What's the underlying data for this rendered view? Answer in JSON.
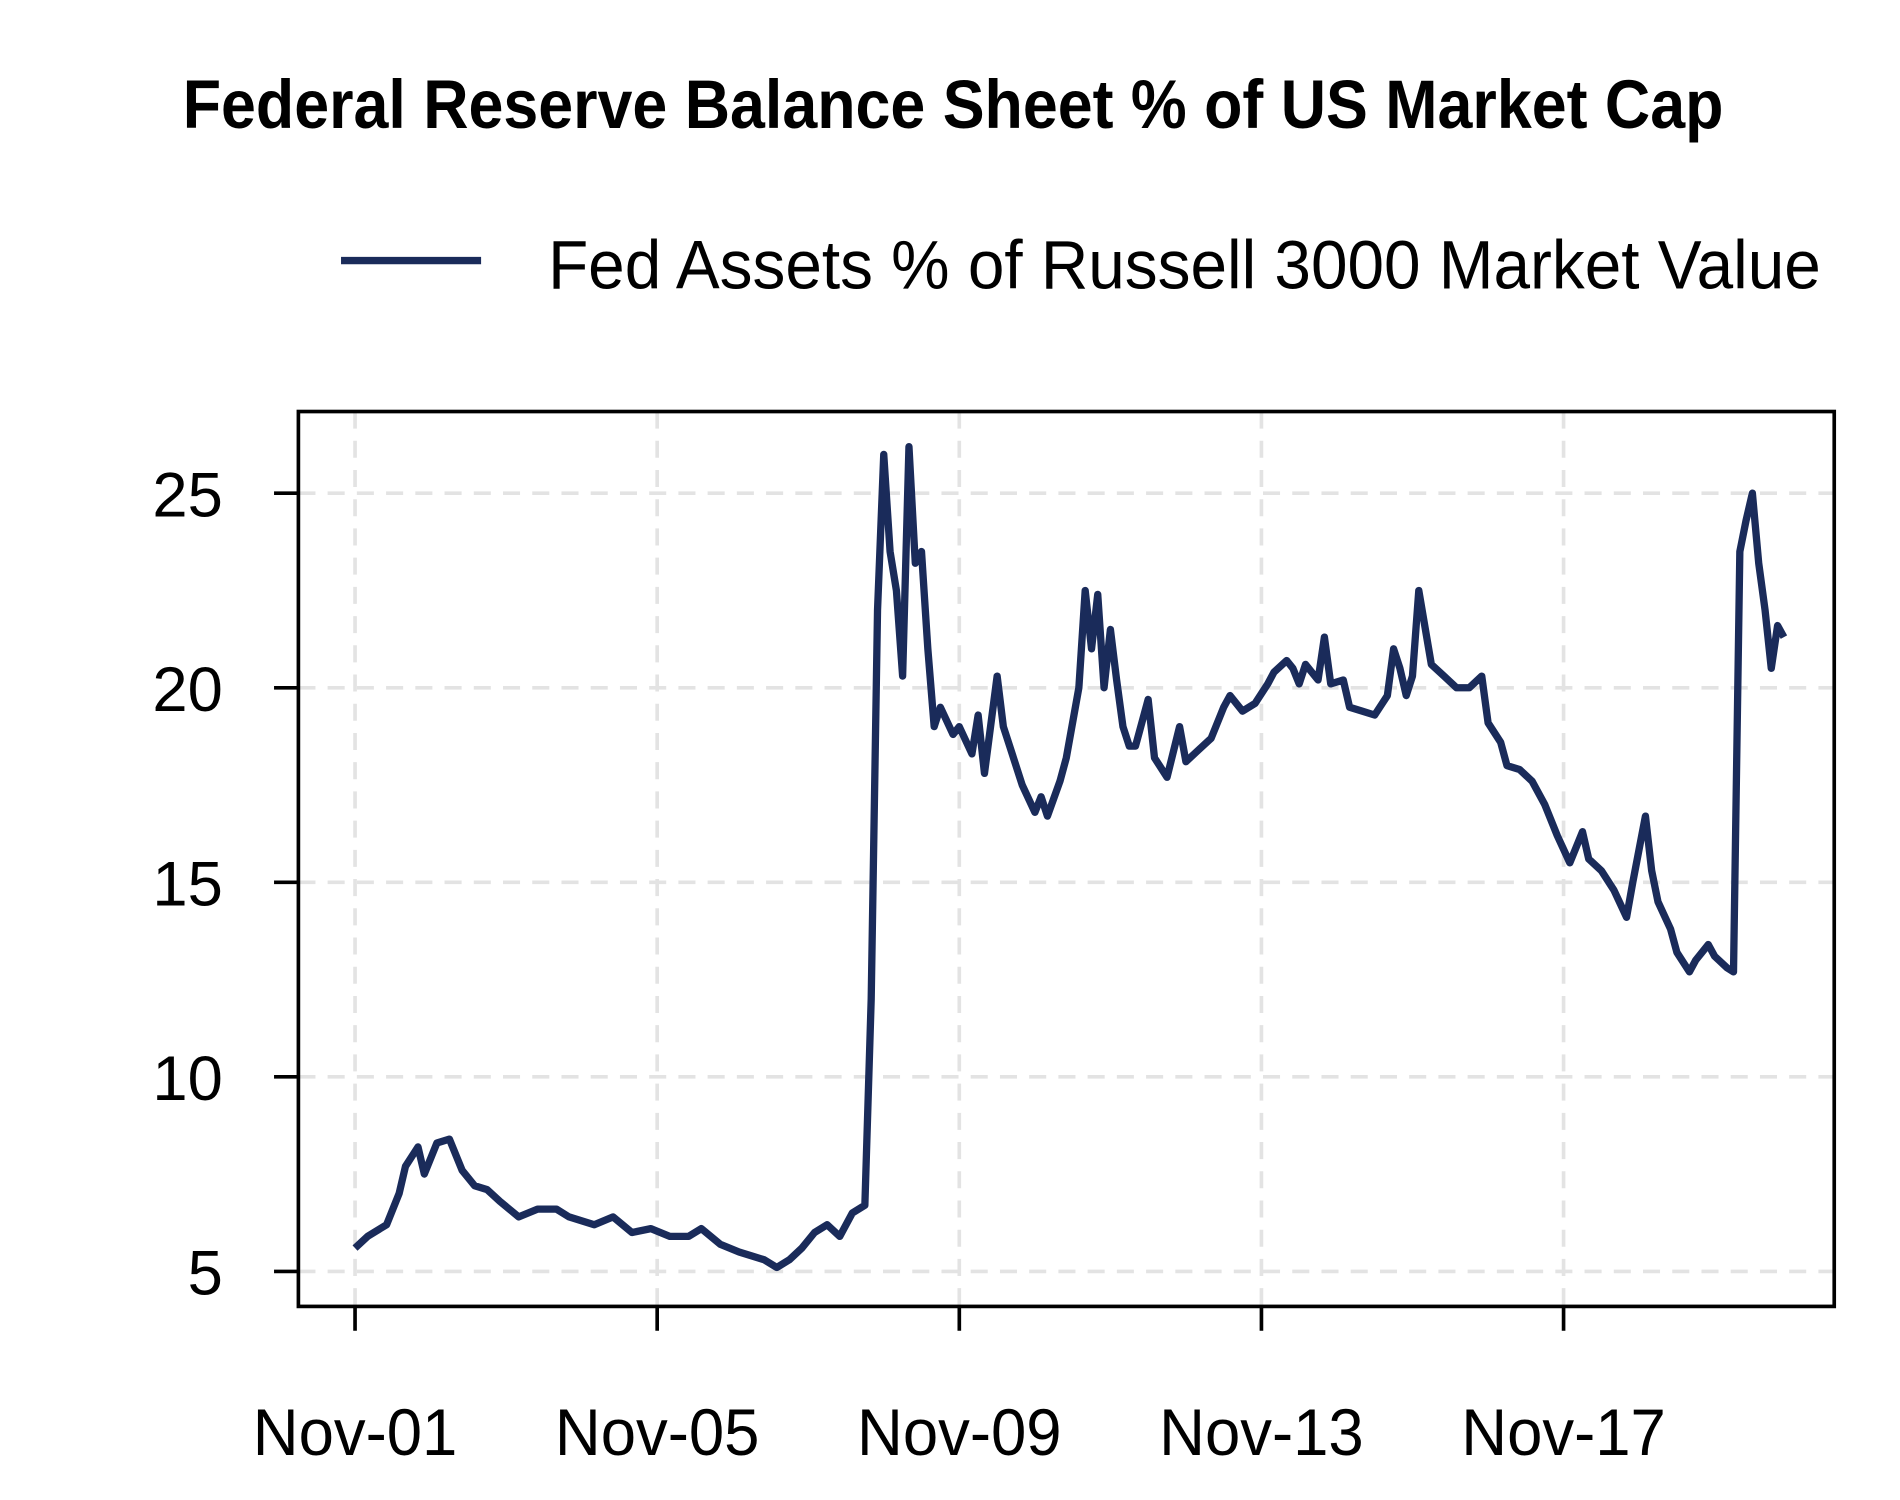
{
  "chart_data": {
    "type": "line",
    "title": "Federal Reserve Balance Sheet % of US Market Cap",
    "xlabel": "",
    "ylabel": "",
    "ylim": [
      4.1,
      27.1
    ],
    "xlim": [
      "2001-02",
      "2021-06"
    ],
    "grid": true,
    "legend_position": "top",
    "colors": {
      "line": "#1a2b5a",
      "grid": "#e3e3e3"
    },
    "x_ticks": [
      {
        "date": "2001-11",
        "label": "Nov-01"
      },
      {
        "date": "2005-11",
        "label": "Nov-05"
      },
      {
        "date": "2009-11",
        "label": "Nov-09"
      },
      {
        "date": "2013-11",
        "label": "Nov-13"
      },
      {
        "date": "2017-11",
        "label": "Nov-17"
      }
    ],
    "y_ticks": [
      {
        "value": 5,
        "label": "5"
      },
      {
        "value": 10,
        "label": "10"
      },
      {
        "value": 15,
        "label": "15"
      },
      {
        "value": 20,
        "label": "20"
      },
      {
        "value": 25,
        "label": "25"
      }
    ],
    "series": [
      {
        "name": "Fed Assets % of Russell 3000 Market Value",
        "x": [
          "2001-11",
          "2002-01",
          "2002-02",
          "2002-04",
          "2002-06",
          "2002-07",
          "2002-09",
          "2002-10",
          "2002-12",
          "2003-02",
          "2003-04",
          "2003-06",
          "2003-08",
          "2003-10",
          "2004-01",
          "2004-04",
          "2004-07",
          "2004-09",
          "2005-01",
          "2005-04",
          "2005-07",
          "2005-10",
          "2006-01",
          "2006-04",
          "2006-06",
          "2006-09",
          "2006-12",
          "2007-02",
          "2007-04",
          "2007-06",
          "2007-08",
          "2007-10",
          "2007-12",
          "2008-02",
          "2008-04",
          "2008-06",
          "2008-08",
          "2008-09",
          "2008-10",
          "2008-11",
          "2008-12",
          "2009-01",
          "2009-02",
          "2009-03",
          "2009-04",
          "2009-05",
          "2009-06",
          "2009-07",
          "2009-08",
          "2009-10",
          "2009-11",
          "2010-01",
          "2010-02",
          "2010-03",
          "2010-05",
          "2010-06",
          "2010-07",
          "2010-09",
          "2010-11",
          "2010-12",
          "2011-01",
          "2011-03",
          "2011-04",
          "2011-06",
          "2011-07",
          "2011-08",
          "2011-09",
          "2011-10",
          "2011-11",
          "2011-12",
          "2012-01",
          "2012-02",
          "2012-03",
          "2012-05",
          "2012-06",
          "2012-08",
          "2012-10",
          "2012-11",
          "2013-01",
          "2013-03",
          "2013-05",
          "2013-06",
          "2013-08",
          "2013-10",
          "2013-12",
          "2014-01",
          "2014-03",
          "2014-04",
          "2014-05",
          "2014-06",
          "2014-08",
          "2014-09",
          "2014-10",
          "2014-12",
          "2015-01",
          "2015-03",
          "2015-05",
          "2015-07",
          "2015-08",
          "2015-09",
          "2015-10",
          "2015-11",
          "2015-12",
          "2016-02",
          "2016-04",
          "2016-06",
          "2016-08",
          "2016-10",
          "2016-11",
          "2017-01",
          "2017-02",
          "2017-04",
          "2017-06",
          "2017-08",
          "2017-10",
          "2017-12",
          "2018-02",
          "2018-03",
          "2018-05",
          "2018-07",
          "2018-09",
          "2018-10",
          "2018-12",
          "2019-01",
          "2019-02",
          "2019-04",
          "2019-05",
          "2019-07",
          "2019-08",
          "2019-10",
          "2019-11",
          "2020-01",
          "2020-02",
          "2020-03",
          "2020-04",
          "2020-05",
          "2020-06",
          "2020-07",
          "2020-08",
          "2020-09",
          "2020-10"
        ],
        "y": [
          5.6,
          5.9,
          6.0,
          6.2,
          7.0,
          7.7,
          8.2,
          7.5,
          8.3,
          8.4,
          7.6,
          7.2,
          7.1,
          6.8,
          6.4,
          6.6,
          6.6,
          6.4,
          6.2,
          6.4,
          6.0,
          6.1,
          5.9,
          5.9,
          6.1,
          5.7,
          5.5,
          5.4,
          5.3,
          5.1,
          5.3,
          5.6,
          6.0,
          6.2,
          5.9,
          6.5,
          6.7,
          12.0,
          22.0,
          26.0,
          23.5,
          22.5,
          20.3,
          26.2,
          23.2,
          23.5,
          21.0,
          19.0,
          19.5,
          18.8,
          19.0,
          18.3,
          19.3,
          17.8,
          20.3,
          19.0,
          18.5,
          17.5,
          16.8,
          17.2,
          16.7,
          17.6,
          18.2,
          20.0,
          22.5,
          21.0,
          22.4,
          20.0,
          21.5,
          20.2,
          19.0,
          18.5,
          18.5,
          19.7,
          18.2,
          17.7,
          19.0,
          18.1,
          18.4,
          18.7,
          19.5,
          19.8,
          19.4,
          19.6,
          20.1,
          20.4,
          20.7,
          20.5,
          20.1,
          20.6,
          20.2,
          21.3,
          20.1,
          20.2,
          19.5,
          19.4,
          19.3,
          19.8,
          21.0,
          20.5,
          19.8,
          20.3,
          22.5,
          20.6,
          20.3,
          20.0,
          20.0,
          20.3,
          19.1,
          18.6,
          18.0,
          17.9,
          17.6,
          17.0,
          16.2,
          15.5,
          16.3,
          15.6,
          15.3,
          14.8,
          14.1,
          15.0,
          16.7,
          15.3,
          14.5,
          13.8,
          13.2,
          12.7,
          13.0,
          13.4,
          13.1,
          12.8,
          12.7,
          23.5,
          24.3,
          25.0,
          23.2,
          22.0,
          20.5,
          21.6,
          21.3
        ]
      }
    ]
  }
}
